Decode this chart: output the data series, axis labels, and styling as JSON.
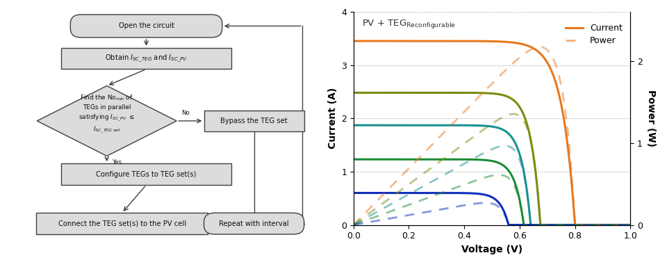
{
  "title": "PV + TEG",
  "title_sub": "Reconfigurable",
  "xlabel": "Voltage (V)",
  "ylabel_left": "Current (A)",
  "ylabel_right": "Power (W)",
  "xlim": [
    0.0,
    1.0
  ],
  "ylim_current": [
    0,
    4
  ],
  "ylim_power": [
    0,
    2.6
  ],
  "xticks": [
    0.0,
    0.2,
    0.4,
    0.6,
    0.8,
    1.0
  ],
  "yticks_left": [
    0,
    1,
    2,
    3,
    4
  ],
  "yticks_right": [
    0,
    1,
    2
  ],
  "curves": [
    {
      "isc": 3.45,
      "voc": 0.8,
      "n": 1.8,
      "color": "#E8781E",
      "alpha_solid": 1.0,
      "alpha_dash": 0.5
    },
    {
      "isc": 2.48,
      "voc": 0.675,
      "n": 1.3,
      "color": "#7A8C10",
      "alpha_solid": 1.0,
      "alpha_dash": 0.5
    },
    {
      "isc": 1.87,
      "voc": 0.64,
      "n": 1.25,
      "color": "#1A9090",
      "alpha_solid": 1.0,
      "alpha_dash": 0.5
    },
    {
      "isc": 1.23,
      "voc": 0.615,
      "n": 1.2,
      "color": "#1E8B35",
      "alpha_solid": 1.0,
      "alpha_dash": 0.5
    },
    {
      "isc": 0.6,
      "voc": 0.56,
      "n": 1.15,
      "color": "#1030BB",
      "alpha_solid": 1.0,
      "alpha_dash": 0.5
    }
  ],
  "legend_current_label": "Current",
  "legend_power_label": "Power",
  "legend_color": "#E8781E",
  "box_fill": "#DCDCDC",
  "box_edge": "#404040",
  "text_color": "#101010"
}
